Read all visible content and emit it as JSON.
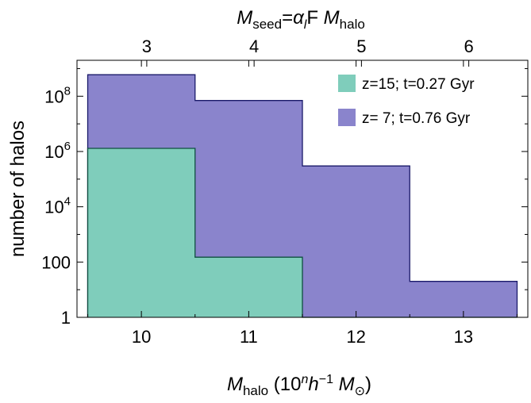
{
  "chart_data": {
    "type": "histogram",
    "x_bins": [
      [
        9.5,
        10.5
      ],
      [
        10.5,
        11.5
      ],
      [
        11.5,
        12.5
      ],
      [
        12.5,
        13.5
      ]
    ],
    "series": [
      {
        "name": "z= 7; t=0.76 Gyr",
        "color": "#8a84cc",
        "edge_color": "#1a1a6a",
        "values": [
          600000000,
          70000000,
          300000,
          20
        ]
      },
      {
        "name": "z=15; t=0.27 Gyr",
        "color": "#7fcdbb",
        "edge_color": "#0f4f3f",
        "values": [
          1300000,
          150,
          1,
          1
        ]
      }
    ],
    "xlabel": {
      "main": "M",
      "sub": "halo",
      "unit_open": " (10",
      "unit_sup1": "n",
      "unit_mid": "h",
      "unit_sup2": "−1",
      "unit_M": " M",
      "unit_sub": "⊙",
      "unit_close": ")"
    },
    "ylabel": "number of halos",
    "top_label": {
      "m1": "M",
      "s1": "seed",
      "eq": "=",
      "alpha": "α",
      "alpha_sub": "l",
      "F": "F ",
      "m2": "M",
      "s2": "halo"
    },
    "xlim": [
      9.4,
      13.6
    ],
    "ylim_log10": [
      0,
      9.3
    ],
    "x_ticks": [
      {
        "value": 10,
        "label": "10"
      },
      {
        "value": 11,
        "label": "11"
      },
      {
        "value": 12,
        "label": "12"
      },
      {
        "value": 13,
        "label": "13"
      }
    ],
    "y_ticks": [
      {
        "exp": 0,
        "base": "1",
        "sup": ""
      },
      {
        "exp": 2,
        "base": "100",
        "sup": ""
      },
      {
        "exp": 4,
        "base": "10",
        "sup": "4"
      },
      {
        "exp": 6,
        "base": "10",
        "sup": "6"
      },
      {
        "exp": 8,
        "base": "10",
        "sup": "8"
      }
    ],
    "top_axis_ticks": [
      {
        "x": 10.05,
        "label": "3"
      },
      {
        "x": 11.05,
        "label": "4"
      },
      {
        "x": 12.05,
        "label": "5"
      },
      {
        "x": 13.05,
        "label": "6"
      }
    ],
    "legend": {
      "placement": "top-right",
      "entries": [
        "z=15; t=0.27 Gyr",
        "z= 7; t=0.76 Gyr"
      ]
    },
    "grid": false,
    "scale_y": "log"
  }
}
